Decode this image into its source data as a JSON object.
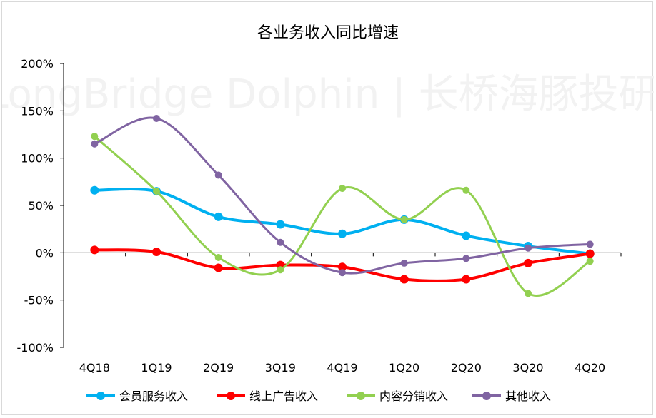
{
  "chart_data": {
    "type": "line",
    "title": "各业务收入同比增速",
    "xlabel": "",
    "ylabel": "",
    "categories": [
      "4Q18",
      "1Q19",
      "2Q19",
      "3Q19",
      "4Q19",
      "1Q20",
      "2Q20",
      "3Q20",
      "4Q20"
    ],
    "yticks": [
      "-100%",
      "-50%",
      "0%",
      "50%",
      "100%",
      "150%",
      "200%"
    ],
    "ylim": [
      -100,
      200
    ],
    "grid": false,
    "legend_position": "bottom",
    "watermark": "LongBridge Dolphin | 长桥海豚投研",
    "series": [
      {
        "name": "会员服务收入",
        "color": "#00b0f0",
        "values": [
          66,
          65,
          38,
          30,
          20,
          35,
          18,
          7,
          -1
        ]
      },
      {
        "name": "线上广告收入",
        "color": "#ff0000",
        "values": [
          3,
          1,
          -16,
          -13,
          -15,
          -28,
          -28,
          -11,
          -1
        ]
      },
      {
        "name": "内容分销收入",
        "color": "#92d050",
        "values": [
          123,
          65,
          -5,
          -18,
          68,
          35,
          66,
          -43,
          -9
        ]
      },
      {
        "name": "其他收入",
        "color": "#8064a2",
        "values": [
          115,
          142,
          82,
          11,
          -21,
          -11,
          -6,
          5,
          9
        ]
      }
    ]
  }
}
